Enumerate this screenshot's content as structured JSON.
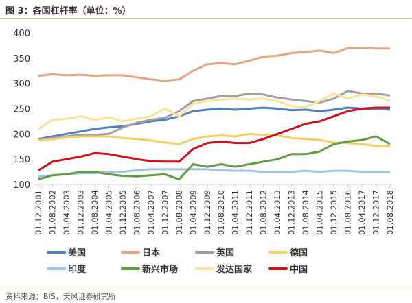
{
  "title": "图 3：各国杠杆率（单位：%）",
  "source": "资料来源：BIS，天风证券研究所",
  "chart_data": {
    "type": "line",
    "title": "图 3：各国杠杆率（单位：%）",
    "xlabel": "",
    "ylabel": "",
    "ylim": [
      100,
      400
    ],
    "yticks": [
      "100",
      "150",
      "200",
      "250",
      "300",
      "350",
      "400"
    ],
    "grid": false,
    "legend_position": "bottom",
    "x": [
      "01.12.2001",
      "01.08.2002",
      "01.04.2003",
      "01.12.2003",
      "01.08.2004",
      "01.04.2005",
      "01.12.2005",
      "01.08.2006",
      "01.04.2007",
      "01.12.2007",
      "01.08.2008",
      "01.04.2009",
      "01.12.2009",
      "01.08.2010",
      "01.04.2011",
      "01.12.2011",
      "01.08.2012",
      "01.04.2013",
      "01.12.2013",
      "01.08.2014",
      "01.04.2015",
      "01.12.2015",
      "01.08.2016",
      "01.04.2017",
      "01.12.2017",
      "01.08.2018"
    ],
    "series": [
      {
        "name": "美国",
        "color": "#4e80bf",
        "values": [
          190,
          195,
          200,
          205,
          210,
          213,
          215,
          220,
          225,
          228,
          235,
          245,
          248,
          250,
          248,
          250,
          252,
          250,
          247,
          248,
          245,
          248,
          252,
          250,
          250,
          248
        ]
      },
      {
        "name": "日本",
        "color": "#e8a57d",
        "values": [
          315,
          318,
          316,
          317,
          315,
          316,
          316,
          312,
          308,
          305,
          308,
          325,
          338,
          340,
          338,
          345,
          353,
          355,
          360,
          362,
          365,
          360,
          370,
          370,
          369,
          369
        ]
      },
      {
        "name": "英国",
        "color": "#a0a0a0",
        "values": [
          188,
          192,
          195,
          198,
          198,
          200,
          213,
          222,
          228,
          232,
          245,
          265,
          270,
          275,
          275,
          280,
          278,
          272,
          268,
          265,
          262,
          270,
          285,
          280,
          280,
          276
        ]
      },
      {
        "name": "德国",
        "color": "#f5cf5f",
        "values": [
          187,
          190,
          193,
          195,
          195,
          195,
          192,
          190,
          187,
          183,
          180,
          190,
          195,
          197,
          195,
          200,
          198,
          197,
          192,
          190,
          188,
          183,
          182,
          180,
          176,
          175
        ]
      },
      {
        "name": "印度",
        "color": "#9dc3e6",
        "values": [
          115,
          118,
          120,
          122,
          122,
          125,
          125,
          128,
          130,
          130,
          130,
          130,
          130,
          128,
          127,
          127,
          125,
          125,
          125,
          127,
          125,
          127,
          127,
          125,
          125,
          125
        ]
      },
      {
        "name": "新兴市场",
        "color": "#5f9e40",
        "values": [
          110,
          118,
          120,
          125,
          125,
          120,
          117,
          116,
          118,
          120,
          110,
          140,
          135,
          140,
          135,
          140,
          145,
          150,
          160,
          160,
          165,
          180,
          185,
          188,
          195,
          180
        ]
      },
      {
        "name": "发达国家",
        "color": "#f9e39b",
        "values": [
          210,
          228,
          230,
          235,
          228,
          233,
          225,
          230,
          235,
          250,
          235,
          260,
          265,
          268,
          270,
          268,
          270,
          265,
          255,
          253,
          265,
          280,
          270,
          278,
          275,
          265
        ]
      },
      {
        "name": "中国",
        "color": "#d0101b",
        "values": [
          128,
          145,
          150,
          155,
          162,
          160,
          155,
          150,
          146,
          145,
          145,
          170,
          182,
          185,
          182,
          182,
          190,
          200,
          210,
          220,
          225,
          235,
          245,
          250,
          252,
          252
        ]
      }
    ]
  }
}
